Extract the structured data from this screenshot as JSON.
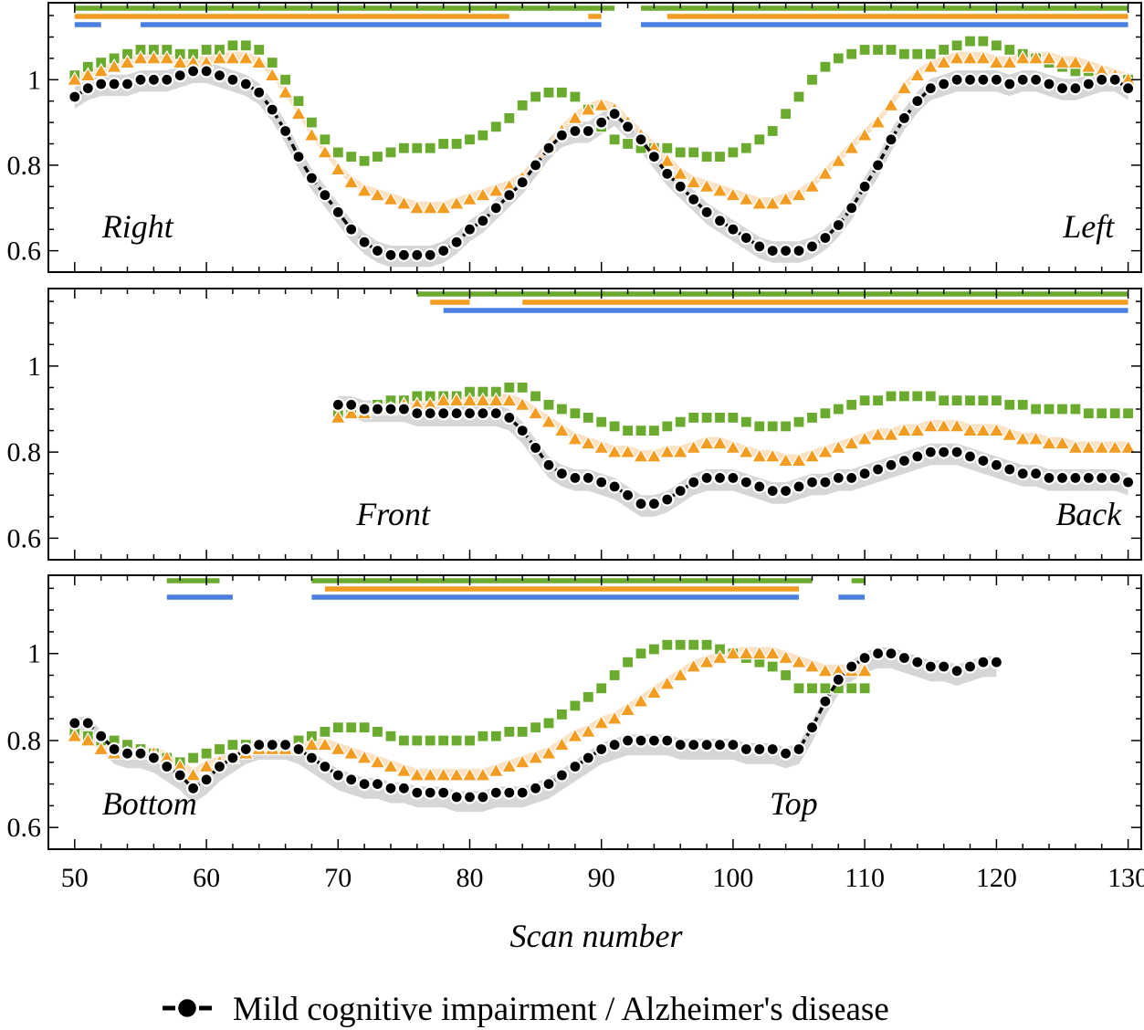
{
  "chart_data": {
    "type": "scatter",
    "xlabel": "Scan number",
    "xlim": [
      48,
      131
    ],
    "xticks": [
      50,
      60,
      70,
      80,
      90,
      100,
      110,
      120,
      130
    ],
    "ylim": [
      0.55,
      1.18
    ],
    "yticks": [
      0.6,
      0.8,
      1
    ],
    "ytick_labels": [
      "0.6",
      "0.8",
      "1"
    ],
    "legend": {
      "entries": [
        "Mild cognitive impairment / Alzheimer's disease"
      ],
      "placement": "bottom-center"
    },
    "colors": {
      "black_series": "#000000",
      "orange_series": "#f39c22",
      "green_series": "#6aaa2e",
      "blue_bar": "#4a7fe0",
      "band_gray": "#d4d4d4",
      "band_orange": "#fbe0c2"
    },
    "panels": [
      {
        "name": "Right–Left",
        "left_label": "Right",
        "right_label": "Left",
        "x_start": 50,
        "black": [
          0.96,
          0.98,
          0.99,
          0.99,
          0.99,
          1.0,
          1.0,
          1.0,
          1.01,
          1.02,
          1.02,
          1.01,
          1.0,
          0.99,
          0.97,
          0.93,
          0.88,
          0.82,
          0.77,
          0.73,
          0.69,
          0.65,
          0.62,
          0.6,
          0.59,
          0.59,
          0.59,
          0.59,
          0.6,
          0.62,
          0.65,
          0.67,
          0.7,
          0.73,
          0.76,
          0.8,
          0.84,
          0.87,
          0.88,
          0.88,
          0.9,
          0.92,
          0.89,
          0.86,
          0.82,
          0.78,
          0.75,
          0.72,
          0.69,
          0.67,
          0.65,
          0.63,
          0.61,
          0.6,
          0.6,
          0.6,
          0.61,
          0.63,
          0.66,
          0.7,
          0.75,
          0.8,
          0.86,
          0.91,
          0.95,
          0.98,
          0.99,
          1.0,
          1.0,
          1.0,
          1.0,
          0.99,
          1.0,
          1.0,
          0.99,
          0.98,
          0.98,
          0.99,
          1.0,
          1.0,
          0.98
        ],
        "orange": [
          1.0,
          1.01,
          1.02,
          1.03,
          1.04,
          1.05,
          1.05,
          1.05,
          1.04,
          1.04,
          1.04,
          1.05,
          1.05,
          1.05,
          1.04,
          1.01,
          0.97,
          0.92,
          0.87,
          0.83,
          0.79,
          0.76,
          0.74,
          0.73,
          0.72,
          0.71,
          0.7,
          0.7,
          0.7,
          0.71,
          0.72,
          0.73,
          0.74,
          0.75,
          0.77,
          0.8,
          0.84,
          0.88,
          0.91,
          0.93,
          0.94,
          0.93,
          0.9,
          0.87,
          0.84,
          0.81,
          0.78,
          0.76,
          0.75,
          0.74,
          0.73,
          0.72,
          0.71,
          0.71,
          0.72,
          0.73,
          0.75,
          0.78,
          0.81,
          0.84,
          0.87,
          0.9,
          0.94,
          0.98,
          1.01,
          1.03,
          1.04,
          1.05,
          1.05,
          1.05,
          1.04,
          1.04,
          1.05,
          1.05,
          1.05,
          1.04,
          1.04,
          1.03,
          1.02,
          1.01,
          1.0
        ],
        "green": [
          1.01,
          1.03,
          1.04,
          1.05,
          1.06,
          1.07,
          1.07,
          1.07,
          1.06,
          1.06,
          1.07,
          1.07,
          1.08,
          1.08,
          1.07,
          1.04,
          1.0,
          0.95,
          0.9,
          0.86,
          0.83,
          0.82,
          0.81,
          0.82,
          0.83,
          0.84,
          0.84,
          0.84,
          0.85,
          0.85,
          0.86,
          0.87,
          0.89,
          0.91,
          0.94,
          0.96,
          0.97,
          0.97,
          0.96,
          0.93,
          0.89,
          0.86,
          0.85,
          0.84,
          0.84,
          0.84,
          0.83,
          0.83,
          0.82,
          0.82,
          0.83,
          0.84,
          0.86,
          0.88,
          0.92,
          0.96,
          1.0,
          1.03,
          1.05,
          1.06,
          1.07,
          1.07,
          1.07,
          1.06,
          1.06,
          1.06,
          1.07,
          1.08,
          1.09,
          1.09,
          1.08,
          1.07,
          1.06,
          1.05,
          1.04,
          1.03,
          1.02,
          1.02,
          1.01,
          1.0,
          1.0
        ],
        "bars": {
          "green": [
            [
              50,
              91
            ],
            [
              93,
              130
            ]
          ],
          "orange": [
            [
              50,
              83
            ],
            [
              89,
              90
            ],
            [
              95,
              130
            ]
          ],
          "blue": [
            [
              50,
              52
            ],
            [
              55,
              90
            ],
            [
              93,
              130
            ]
          ]
        }
      },
      {
        "name": "Front–Back",
        "left_label": "Front",
        "right_label": "Back",
        "x_start": 70,
        "black": [
          0.91,
          0.91,
          0.9,
          0.9,
          0.9,
          0.9,
          0.89,
          0.89,
          0.89,
          0.89,
          0.89,
          0.89,
          0.89,
          0.88,
          0.85,
          0.81,
          0.77,
          0.75,
          0.74,
          0.74,
          0.73,
          0.72,
          0.7,
          0.68,
          0.68,
          0.69,
          0.71,
          0.73,
          0.74,
          0.74,
          0.74,
          0.73,
          0.72,
          0.71,
          0.71,
          0.72,
          0.73,
          0.73,
          0.74,
          0.74,
          0.75,
          0.76,
          0.77,
          0.78,
          0.79,
          0.8,
          0.8,
          0.8,
          0.79,
          0.78,
          0.77,
          0.76,
          0.75,
          0.75,
          0.74,
          0.74,
          0.74,
          0.74,
          0.74,
          0.74,
          0.73
        ],
        "orange": [
          0.88,
          0.89,
          0.89,
          0.9,
          0.9,
          0.91,
          0.91,
          0.91,
          0.92,
          0.92,
          0.92,
          0.92,
          0.92,
          0.92,
          0.91,
          0.89,
          0.87,
          0.85,
          0.83,
          0.82,
          0.81,
          0.8,
          0.8,
          0.79,
          0.79,
          0.8,
          0.8,
          0.81,
          0.82,
          0.82,
          0.81,
          0.8,
          0.79,
          0.79,
          0.78,
          0.78,
          0.79,
          0.8,
          0.81,
          0.82,
          0.83,
          0.84,
          0.84,
          0.85,
          0.85,
          0.86,
          0.86,
          0.86,
          0.85,
          0.85,
          0.85,
          0.84,
          0.83,
          0.83,
          0.82,
          0.82,
          0.81,
          0.81,
          0.81,
          0.81,
          0.81
        ],
        "green": [
          0.89,
          0.9,
          0.9,
          0.91,
          0.92,
          0.92,
          0.93,
          0.93,
          0.93,
          0.93,
          0.94,
          0.94,
          0.94,
          0.95,
          0.95,
          0.93,
          0.91,
          0.9,
          0.89,
          0.88,
          0.87,
          0.86,
          0.85,
          0.85,
          0.85,
          0.86,
          0.87,
          0.88,
          0.88,
          0.88,
          0.88,
          0.87,
          0.86,
          0.86,
          0.86,
          0.87,
          0.88,
          0.89,
          0.9,
          0.91,
          0.92,
          0.92,
          0.93,
          0.93,
          0.93,
          0.93,
          0.92,
          0.92,
          0.92,
          0.92,
          0.92,
          0.91,
          0.91,
          0.9,
          0.9,
          0.9,
          0.9,
          0.89,
          0.89,
          0.89,
          0.89
        ],
        "bars": {
          "green": [
            [
              76,
              130
            ]
          ],
          "orange": [
            [
              77,
              80
            ],
            [
              84,
              130
            ]
          ],
          "blue": [
            [
              78,
              130
            ]
          ]
        }
      },
      {
        "name": "Bottom–Top",
        "left_label": "Bottom",
        "right_label": "Top",
        "x_start": 50,
        "black": [
          0.84,
          0.84,
          0.81,
          0.78,
          0.77,
          0.77,
          0.76,
          0.74,
          0.72,
          0.69,
          0.71,
          0.74,
          0.76,
          0.78,
          0.79,
          0.79,
          0.79,
          0.78,
          0.76,
          0.74,
          0.72,
          0.71,
          0.7,
          0.7,
          0.69,
          0.69,
          0.68,
          0.68,
          0.68,
          0.67,
          0.67,
          0.67,
          0.68,
          0.68,
          0.68,
          0.69,
          0.7,
          0.72,
          0.74,
          0.76,
          0.78,
          0.79,
          0.8,
          0.8,
          0.8,
          0.8,
          0.79,
          0.79,
          0.79,
          0.79,
          0.79,
          0.78,
          0.78,
          0.78,
          0.77,
          0.78,
          0.83,
          0.89,
          0.94,
          0.97,
          0.99,
          1.0,
          1.0,
          0.99,
          0.98,
          0.97,
          0.97,
          0.96,
          0.97,
          0.98,
          0.98
        ],
        "orange": [
          0.81,
          0.8,
          0.78,
          0.77,
          0.77,
          0.77,
          0.77,
          0.76,
          0.74,
          0.72,
          0.74,
          0.75,
          0.76,
          0.77,
          0.78,
          0.78,
          0.78,
          0.78,
          0.79,
          0.79,
          0.78,
          0.77,
          0.76,
          0.75,
          0.74,
          0.73,
          0.72,
          0.72,
          0.72,
          0.72,
          0.72,
          0.72,
          0.73,
          0.74,
          0.75,
          0.76,
          0.77,
          0.79,
          0.81,
          0.82,
          0.84,
          0.85,
          0.87,
          0.89,
          0.91,
          0.93,
          0.95,
          0.97,
          0.98,
          0.99,
          1.0,
          1.0,
          1.0,
          1.0,
          0.99,
          0.98,
          0.97,
          0.96,
          0.96,
          0.96,
          0.96
        ],
        "green": [
          0.82,
          0.81,
          0.8,
          0.8,
          0.79,
          0.78,
          0.77,
          0.76,
          0.75,
          0.76,
          0.77,
          0.78,
          0.79,
          0.79,
          0.79,
          0.79,
          0.79,
          0.8,
          0.81,
          0.82,
          0.83,
          0.83,
          0.83,
          0.82,
          0.81,
          0.8,
          0.8,
          0.8,
          0.8,
          0.8,
          0.8,
          0.81,
          0.81,
          0.82,
          0.82,
          0.83,
          0.84,
          0.86,
          0.88,
          0.9,
          0.92,
          0.95,
          0.98,
          1.0,
          1.01,
          1.02,
          1.02,
          1.02,
          1.02,
          1.01,
          1.0,
          0.99,
          0.98,
          0.97,
          0.95,
          0.92,
          0.92,
          0.92,
          0.92,
          0.92,
          0.92
        ],
        "bars": {
          "green": [
            [
              57,
              61
            ],
            [
              68,
              106
            ],
            [
              109,
              110
            ]
          ],
          "orange": [
            [
              69,
              105
            ]
          ],
          "blue": [
            [
              57,
              62
            ],
            [
              68,
              105
            ],
            [
              108,
              110
            ]
          ]
        }
      }
    ]
  }
}
